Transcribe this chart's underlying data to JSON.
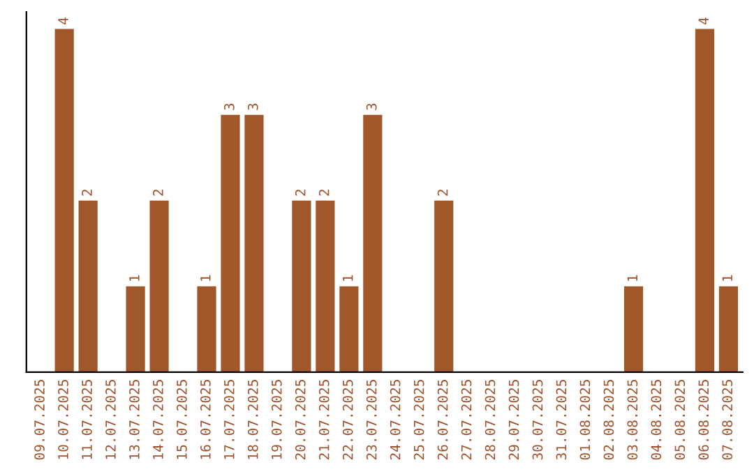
{
  "chart_data": {
    "type": "bar",
    "categories": [
      "09.07.2025",
      "10.07.2025",
      "11.07.2025",
      "12.07.2025",
      "13.07.2025",
      "14.07.2025",
      "15.07.2025",
      "16.07.2025",
      "17.07.2025",
      "18.07.2025",
      "19.07.2025",
      "20.07.2025",
      "21.07.2025",
      "22.07.2025",
      "23.07.2025",
      "24.07.2025",
      "25.07.2025",
      "26.07.2025",
      "27.07.2025",
      "28.07.2025",
      "29.07.2025",
      "30.07.2025",
      "31.07.2025",
      "01.08.2025",
      "02.08.2025",
      "03.08.2025",
      "04.08.2025",
      "05.08.2025",
      "06.08.2025",
      "07.08.2025"
    ],
    "values": [
      0,
      4,
      2,
      0,
      1,
      2,
      0,
      1,
      3,
      3,
      0,
      2,
      2,
      1,
      3,
      0,
      0,
      2,
      0,
      0,
      0,
      0,
      0,
      0,
      0,
      1,
      0,
      0,
      4,
      1
    ],
    "value_labels": [
      null,
      "4",
      "2",
      null,
      "1",
      "2",
      null,
      "1",
      "3",
      "3",
      null,
      "2",
      "2",
      "1",
      "3",
      null,
      null,
      "2",
      null,
      null,
      null,
      null,
      null,
      null,
      null,
      "1",
      null,
      null,
      "4",
      "1"
    ],
    "color": "#a0572a",
    "tick_labels": "x",
    "grid": false
  }
}
